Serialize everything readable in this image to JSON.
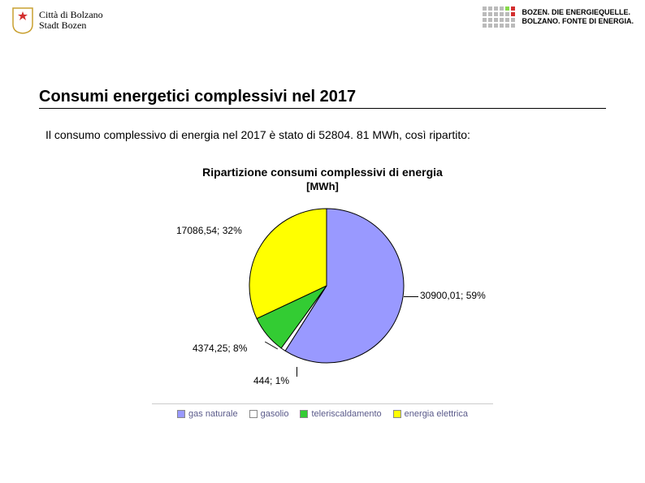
{
  "header": {
    "city_line1": "Città di Bolzano",
    "city_line2": "Stadt Bozen",
    "shield_bg": "#ffffff",
    "shield_star": "#d32f2f",
    "shield_border": "#c9a030",
    "tagline_line1": "BOZEN. DIE ENERGIEQUELLE.",
    "tagline_line2": "BOLZANO. FONTE DI ENERGIA.",
    "dot_colors": [
      "#bbbbbb",
      "#bbbbbb",
      "#bbbbbb",
      "#bbbbbb",
      "#87d94a",
      "#d32f2f",
      "#bbbbbb",
      "#bbbbbb",
      "#bbbbbb",
      "#bbbbbb",
      "#bbbbbb",
      "#d32f2f",
      "#bbbbbb",
      "#bbbbbb",
      "#bbbbbb",
      "#bbbbbb",
      "#bbbbbb",
      "#bbbbbb",
      "#bbbbbb",
      "#bbbbbb",
      "#bbbbbb",
      "#bbbbbb",
      "#bbbbbb",
      "#bbbbbb"
    ]
  },
  "page": {
    "title": "Consumi energetici complessivi nel 2017",
    "intro": "Il consumo complessivo di energia nel 2017 è stato di 52804. 81 MWh, così ripartito:"
  },
  "chart": {
    "type": "pie",
    "title": "Ripartizione consumi complessivi di energia",
    "subtitle": "[MWh]",
    "background": "#ffffff",
    "slice_border": "#000000",
    "slices": [
      {
        "name": "gas naturale",
        "value": 30900.01,
        "pct": 59,
        "color": "#9999ff",
        "label": "30900,01; 59%"
      },
      {
        "name": "gasolio",
        "value": 444,
        "pct": 1,
        "color": "#ffffff",
        "label": "444; 1%"
      },
      {
        "name": "teleriscaldamento",
        "value": 4374.25,
        "pct": 8,
        "color": "#33cc33",
        "label": "4374,25; 8%"
      },
      {
        "name": "energia elettrica",
        "value": 17086.54,
        "pct": 32,
        "color": "#ffff00",
        "label": "17086,54; 32%"
      }
    ],
    "label_fontsize": 12,
    "legend": [
      {
        "label": "gas naturale",
        "color": "#9999ff"
      },
      {
        "label": "gasolio",
        "color": "#ffffff"
      },
      {
        "label": "teleriscaldamento",
        "color": "#33cc33"
      },
      {
        "label": "energia elettrica",
        "color": "#ffff00"
      }
    ]
  }
}
